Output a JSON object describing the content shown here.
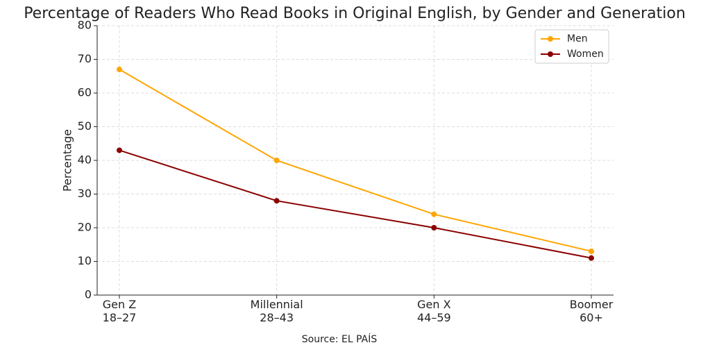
{
  "chart_data": {
    "type": "line",
    "title": "Percentage of Readers Who Read Books in Original English, by Gender and Generation",
    "y_label": "Percentage",
    "source": "Source: EL PAÍS",
    "categories": [
      "Gen Z\n18–27",
      "Millennial\n28–43",
      "Gen X\n44–59",
      "Boomer\n60+"
    ],
    "series": [
      {
        "name": "Men",
        "color": "#FFA500",
        "values": [
          67,
          40,
          24,
          13
        ]
      },
      {
        "name": "Women",
        "color": "#8B0000",
        "values": [
          43,
          28,
          20,
          11
        ]
      }
    ],
    "ylim": [
      0,
      80
    ],
    "yticks": [
      0,
      10,
      20,
      30,
      40,
      50,
      60,
      70,
      80
    ],
    "grid": true,
    "legend": "upper right"
  }
}
